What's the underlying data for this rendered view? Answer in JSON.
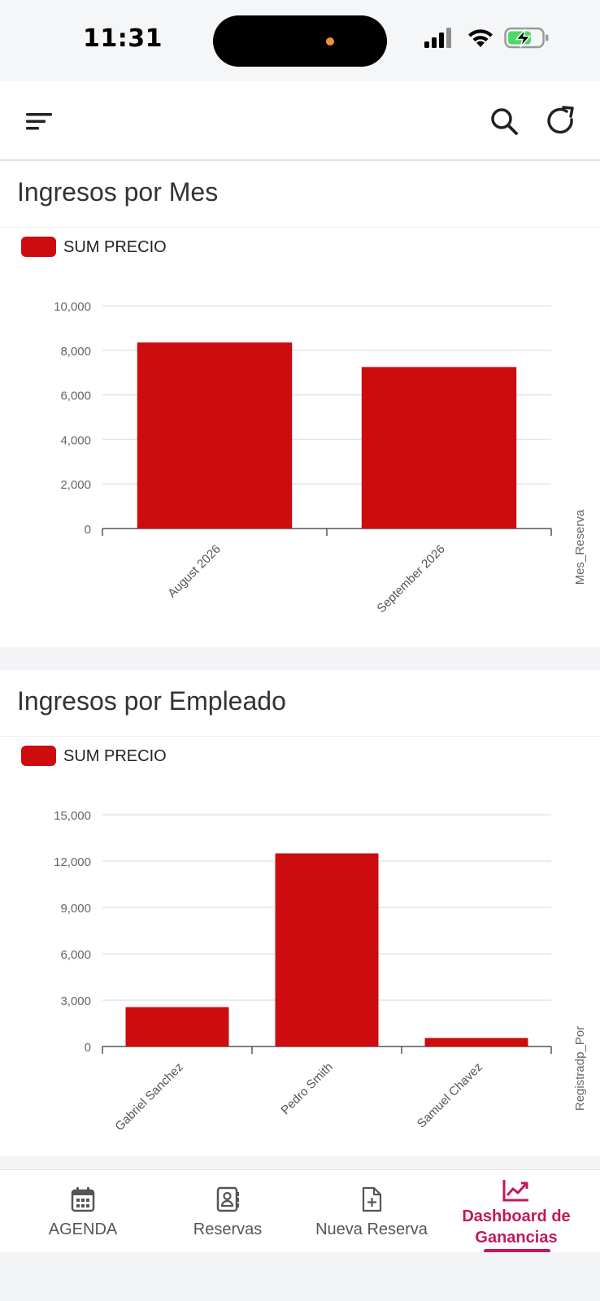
{
  "status_bar": {
    "time": "11:31"
  },
  "app_bar": {
    "menu_icon": "menu-icon",
    "search_icon": "search-icon",
    "refresh_icon": "refresh-icon"
  },
  "cards": [
    {
      "title": "Ingresos por Mes",
      "legend_label": "SUM PRECIO"
    },
    {
      "title": "Ingresos por Empleado",
      "legend_label": "SUM PRECIO"
    }
  ],
  "chart_data": [
    {
      "type": "bar",
      "title": "Ingresos por Mes",
      "categories": [
        "August 2026",
        "September 2026"
      ],
      "series": [
        {
          "name": "SUM PRECIO",
          "values": [
            8350,
            7250
          ]
        }
      ],
      "xlabel": "Mes_Reserva",
      "ylabel": "",
      "ylim": [
        0,
        10000
      ],
      "yticks": [
        0,
        2000,
        4000,
        6000,
        8000,
        10000
      ],
      "ytick_labels": [
        "0",
        "2,000",
        "4,000",
        "6,000",
        "8,000",
        "10,000"
      ],
      "grid": true,
      "legend": "top-left",
      "color": "#cc0c0e"
    },
    {
      "type": "bar",
      "title": "Ingresos por Empleado",
      "categories": [
        "Gabriel Sanchez",
        "Pedro Smith",
        "Samuel Chavez"
      ],
      "series": [
        {
          "name": "SUM PRECIO",
          "values": [
            2550,
            12500,
            550
          ]
        }
      ],
      "xlabel": "Registradp_Por",
      "ylabel": "",
      "ylim": [
        0,
        15000
      ],
      "yticks": [
        0,
        3000,
        6000,
        9000,
        12000,
        15000
      ],
      "ytick_labels": [
        "0",
        "3,000",
        "6,000",
        "9,000",
        "12,000",
        "15,000"
      ],
      "grid": true,
      "legend": "top-left",
      "color": "#cc0c0e"
    }
  ],
  "bottom_nav": {
    "items": [
      {
        "label": "AGENDA",
        "icon": "calendar-icon"
      },
      {
        "label": "Reservas",
        "icon": "contacts-book-icon"
      },
      {
        "label": "Nueva Reserva",
        "icon": "file-plus-icon"
      },
      {
        "label": "Dashboard de Ganancias",
        "label_line1": "Dashboard de",
        "label_line2": "Ganancias",
        "icon": "trending-up-icon",
        "active": true
      }
    ],
    "active_color": "#c2185b"
  }
}
